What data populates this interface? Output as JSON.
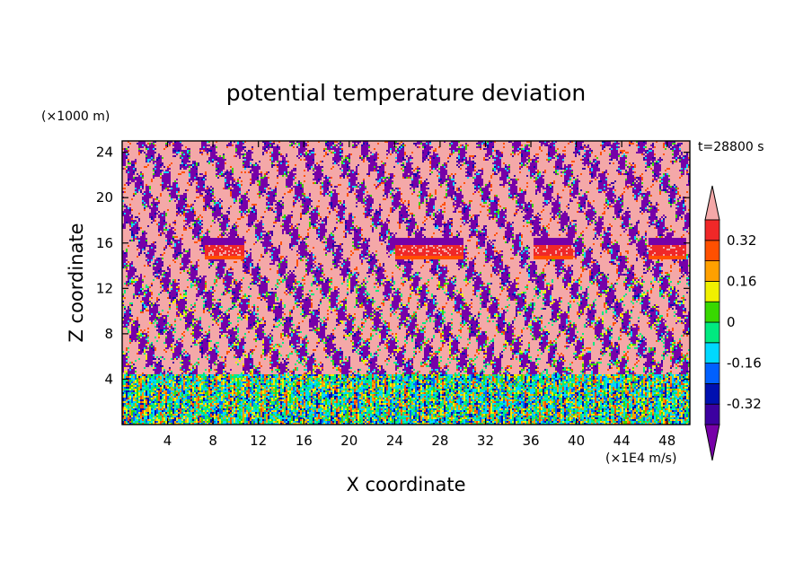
{
  "chart_data": {
    "type": "heatmap",
    "title": "potential temperature deviation",
    "xlabel": "X coordinate",
    "ylabel": "Z coordinate",
    "x_unit": "(×1E4 m/s)",
    "y_unit": "(×1000 m)",
    "time_label": "t=28800 s",
    "xlim": [
      0,
      50
    ],
    "ylim": [
      0,
      25
    ],
    "x_ticks": [
      4,
      8,
      12,
      16,
      20,
      24,
      28,
      32,
      36,
      40,
      44,
      48
    ],
    "y_ticks": [
      4,
      8,
      12,
      16,
      20,
      24
    ],
    "colorbar": {
      "levels": [
        -0.4,
        -0.32,
        -0.24,
        -0.16,
        -0.08,
        0,
        0.08,
        0.16,
        0.24,
        0.32,
        0.4
      ],
      "tick_labels": [
        "0.32",
        "0.16",
        "0",
        "-0.16",
        "-0.32"
      ],
      "tick_values": [
        0.32,
        0.16,
        0,
        -0.16,
        -0.32
      ],
      "colors": [
        "#7700a8",
        "#3c00a0",
        "#0010b0",
        "#0060ff",
        "#00d8ff",
        "#00ea80",
        "#38d800",
        "#f0f000",
        "#ffa000",
        "#ff5000",
        "#f02828",
        "#f4a8a8"
      ],
      "extend": "both"
    },
    "features": [
      {
        "description_value": "warm layer",
        "x_centers": [
          9,
          27,
          38,
          48
        ],
        "z": [
          14.5,
          15.5
        ]
      },
      {
        "description_value": "turbulent boundary layer",
        "z": [
          0,
          4.5
        ]
      }
    ]
  }
}
